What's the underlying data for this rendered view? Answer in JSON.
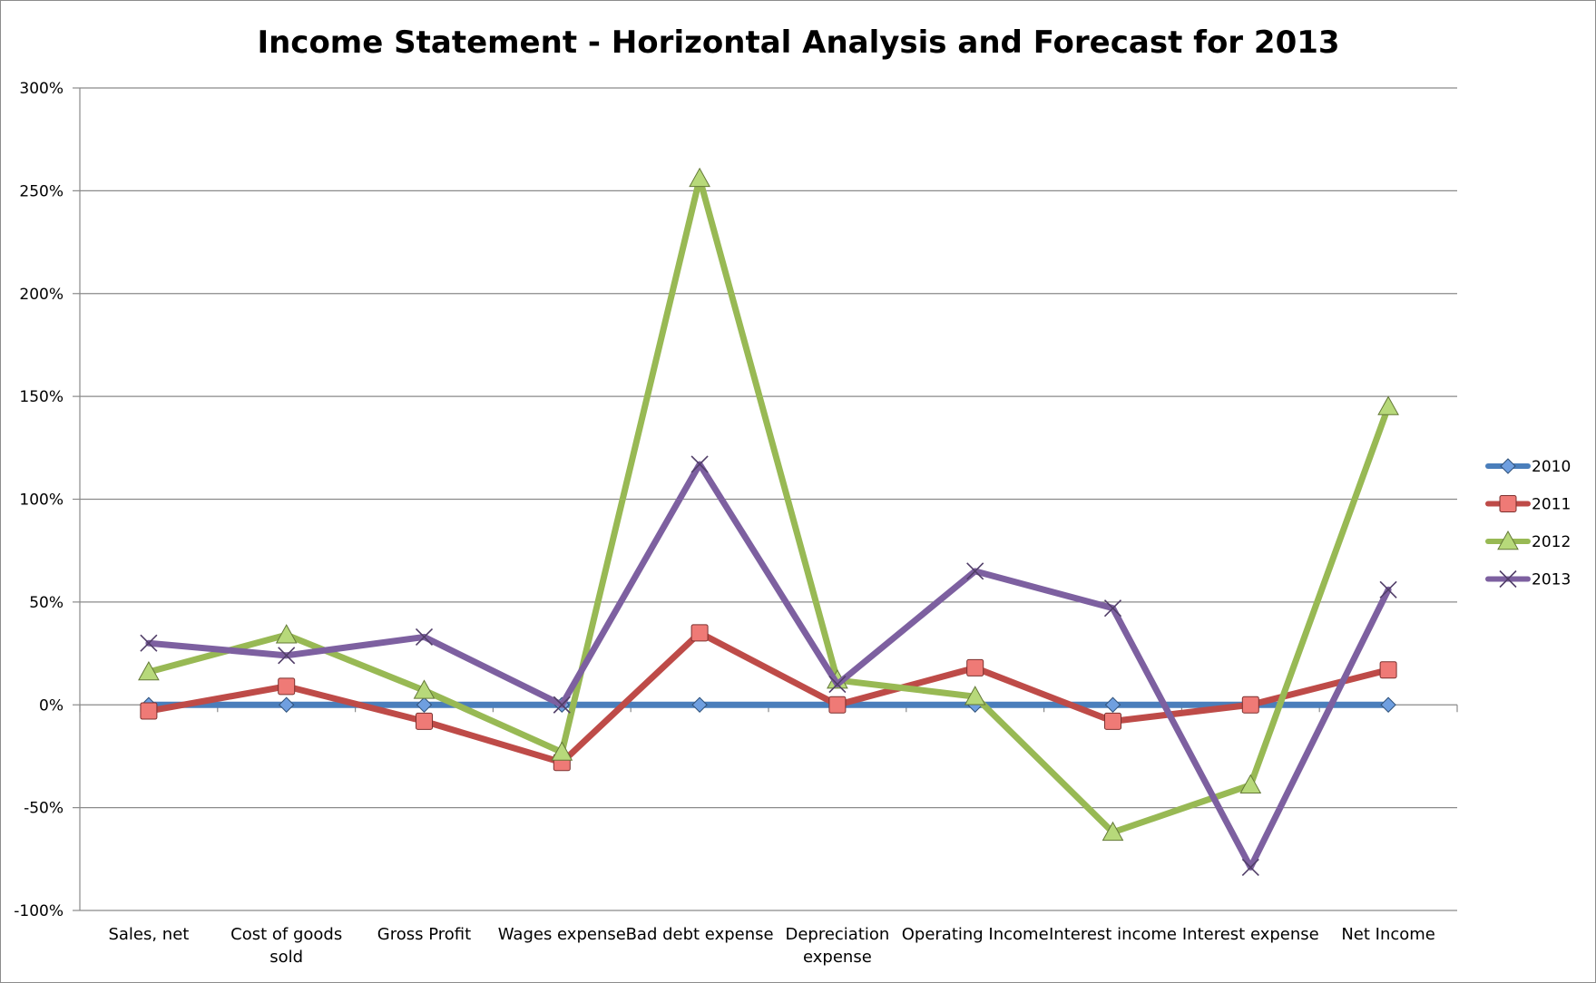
{
  "chart_data": {
    "type": "line",
    "title": "Income Statement - Horizontal Analysis and Forecast for 2013",
    "xlabel": "",
    "ylabel": "",
    "ylim": [
      -100,
      300
    ],
    "ytick_step": 50,
    "ytick_labels": [
      "300%",
      "250%",
      "200%",
      "150%",
      "100%",
      "50%",
      "0%",
      "-50%",
      "-100%"
    ],
    "categories": [
      [
        "Sales, net"
      ],
      [
        "Cost of goods",
        "sold"
      ],
      [
        "Gross Profit"
      ],
      [
        "Wages expense"
      ],
      [
        "Bad debt expense"
      ],
      [
        "Depreciation",
        "expense"
      ],
      [
        "Operating Income"
      ],
      [
        "Interest income"
      ],
      [
        "Interest expense"
      ],
      [
        "Net Income"
      ]
    ],
    "grid": "horizontal",
    "legend_position": "right",
    "series": [
      {
        "name": "2010",
        "marker": "diamond",
        "color": "#4a7ebb",
        "values": [
          0,
          0,
          0,
          0,
          0,
          0,
          0,
          0,
          0,
          0
        ]
      },
      {
        "name": "2011",
        "marker": "square",
        "color": "#be4b48",
        "values": [
          -3,
          9,
          -8,
          -28,
          35,
          0,
          18,
          -8,
          0,
          17
        ]
      },
      {
        "name": "2012",
        "marker": "triangle",
        "color": "#98b954",
        "values": [
          16,
          34,
          7,
          -23,
          256,
          12,
          4,
          -62,
          -39,
          145
        ]
      },
      {
        "name": "2013",
        "marker": "x",
        "color": "#7d60a0",
        "values": [
          30,
          24,
          33,
          0,
          117,
          10,
          65,
          47,
          -79,
          56
        ]
      }
    ]
  }
}
